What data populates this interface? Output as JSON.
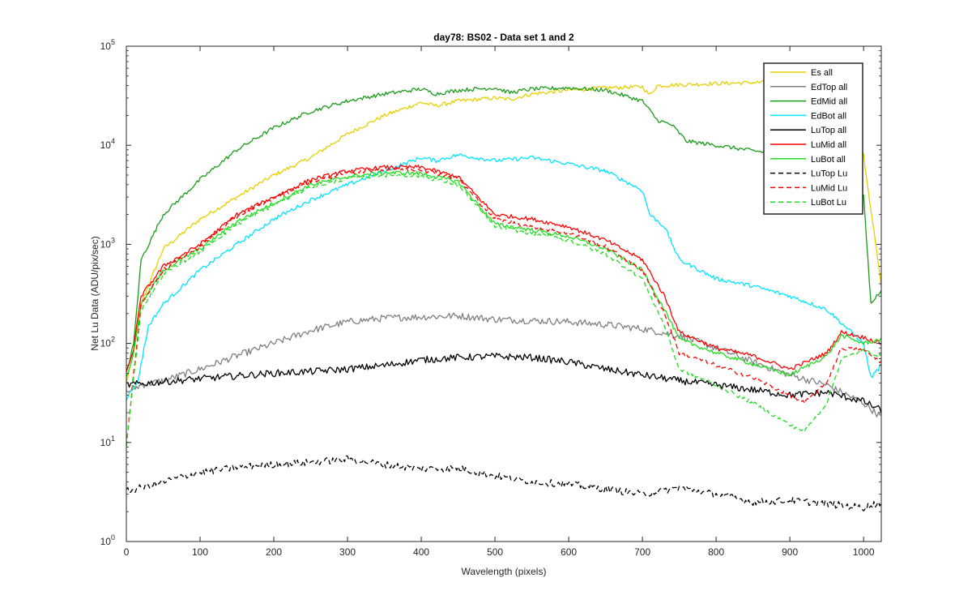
{
  "chart_data": {
    "type": "line",
    "title": "day78: BS02 - Data set 1 and 2",
    "xlabel": "Wavelength (pixels)",
    "ylabel": "Net Lu Data (ADU/pix/sec)",
    "xlim": [
      0,
      1024
    ],
    "ylim": [
      1,
      100000
    ],
    "yscale": "log",
    "legend_location": "top-right",
    "x_ticks": [
      0,
      100,
      200,
      300,
      400,
      500,
      600,
      700,
      800,
      900,
      1000
    ],
    "x_tick_labels": [
      "0",
      "100",
      "200",
      "300",
      "400",
      "500",
      "600",
      "700",
      "800",
      "900",
      "1000"
    ],
    "y_ticks": [
      1,
      10,
      100,
      1000,
      10000,
      100000
    ],
    "y_tick_labels": [
      {
        "base": "10",
        "exp": "0"
      },
      {
        "base": "10",
        "exp": "1"
      },
      {
        "base": "10",
        "exp": "2"
      },
      {
        "base": "10",
        "exp": "3"
      },
      {
        "base": "10",
        "exp": "4"
      },
      {
        "base": "10",
        "exp": "5"
      }
    ],
    "series": [
      {
        "name": "Es  all",
        "color": "#e6d000",
        "dash": "solid",
        "x": [
          0,
          10,
          20,
          50,
          100,
          150,
          200,
          250,
          300,
          350,
          400,
          420,
          450,
          500,
          520,
          550,
          600,
          650,
          700,
          710,
          720,
          800,
          900,
          980,
          1000,
          1024
        ],
        "y": [
          40,
          80,
          250,
          900,
          1800,
          3000,
          5000,
          7500,
          13000,
          20000,
          27000,
          25000,
          28000,
          30000,
          29000,
          33000,
          36000,
          38000,
          39000,
          32000,
          40000,
          42000,
          44000,
          40000,
          8000,
          380
        ]
      },
      {
        "name": "EdTop  all",
        "color": "#808080",
        "dash": "solid",
        "x": [
          0,
          20,
          50,
          100,
          150,
          200,
          250,
          300,
          350,
          400,
          450,
          500,
          550,
          600,
          650,
          700,
          750,
          800,
          850,
          900,
          950,
          1000,
          1024
        ],
        "y": [
          32,
          38,
          42,
          55,
          75,
          100,
          135,
          165,
          180,
          185,
          190,
          175,
          170,
          165,
          155,
          140,
          120,
          90,
          65,
          48,
          38,
          25,
          18
        ]
      },
      {
        "name": "EdMid  all",
        "color": "#1a9c1a",
        "dash": "solid",
        "x": [
          0,
          10,
          20,
          50,
          100,
          150,
          200,
          250,
          300,
          350,
          400,
          420,
          450,
          500,
          520,
          550,
          600,
          650,
          700,
          720,
          740,
          760,
          800,
          850,
          900,
          950,
          1000,
          1010,
          1024
        ],
        "y": [
          50,
          100,
          700,
          2000,
          4500,
          9000,
          15000,
          22000,
          28000,
          33000,
          37000,
          33000,
          36000,
          38000,
          34000,
          37000,
          38000,
          36000,
          28000,
          18000,
          16000,
          11000,
          10000,
          8800,
          8000,
          7500,
          3000,
          250,
          350
        ]
      },
      {
        "name": "EdBot  all",
        "color": "#00e5ff",
        "dash": "solid",
        "x": [
          0,
          15,
          30,
          50,
          100,
          150,
          200,
          250,
          300,
          350,
          400,
          420,
          450,
          500,
          550,
          600,
          650,
          700,
          710,
          730,
          750,
          800,
          850,
          900,
          950,
          1000,
          1010,
          1024
        ],
        "y": [
          28,
          40,
          150,
          250,
          550,
          1000,
          1800,
          2800,
          4000,
          5500,
          7500,
          7000,
          8000,
          7000,
          7500,
          6500,
          5500,
          3500,
          2000,
          1500,
          700,
          450,
          380,
          300,
          220,
          100,
          45,
          60
        ]
      },
      {
        "name": "LuTop  all",
        "color": "#000000",
        "dash": "solid",
        "x": [
          0,
          50,
          100,
          150,
          200,
          250,
          300,
          350,
          400,
          450,
          500,
          550,
          600,
          650,
          700,
          750,
          800,
          850,
          900,
          950,
          1000,
          1024
        ],
        "y": [
          38,
          41,
          44,
          47,
          50,
          52,
          55,
          60,
          68,
          72,
          74,
          72,
          65,
          55,
          48,
          42,
          38,
          34,
          30,
          32,
          26,
          21
        ]
      },
      {
        "name": "LuMid  all",
        "color": "#ff0000",
        "dash": "solid",
        "x": [
          0,
          10,
          20,
          50,
          100,
          150,
          200,
          250,
          300,
          350,
          400,
          450,
          500,
          550,
          600,
          650,
          700,
          730,
          750,
          800,
          850,
          900,
          950,
          970,
          1000,
          1024
        ],
        "y": [
          50,
          90,
          300,
          600,
          1000,
          2000,
          3000,
          4500,
          5500,
          6000,
          6000,
          4800,
          2000,
          1800,
          1500,
          1100,
          700,
          300,
          130,
          90,
          75,
          55,
          80,
          130,
          115,
          100
        ]
      },
      {
        "name": "LuBot  all",
        "color": "#22dd22",
        "dash": "solid",
        "x": [
          0,
          10,
          20,
          50,
          100,
          150,
          200,
          250,
          300,
          350,
          400,
          450,
          500,
          550,
          600,
          650,
          700,
          730,
          750,
          800,
          850,
          900,
          950,
          970,
          1000,
          1024
        ],
        "y": [
          45,
          80,
          250,
          550,
          900,
          1700,
          2600,
          4000,
          4800,
          5300,
          5200,
          4300,
          1600,
          1400,
          1200,
          900,
          550,
          220,
          110,
          80,
          62,
          48,
          75,
          120,
          100,
          110
        ]
      },
      {
        "name": "LuTop  Lu",
        "color": "#000000",
        "dash": "dashed",
        "x": [
          0,
          50,
          100,
          150,
          200,
          250,
          300,
          350,
          400,
          450,
          500,
          550,
          600,
          650,
          700,
          750,
          800,
          850,
          900,
          950,
          1000,
          1024
        ],
        "y": [
          3.2,
          4.0,
          5.0,
          5.6,
          6.0,
          6.3,
          6.8,
          6.0,
          5.4,
          5.5,
          4.6,
          4.0,
          3.8,
          3.4,
          3.0,
          3.5,
          3.0,
          2.5,
          2.6,
          2.4,
          2.2,
          2.5
        ]
      },
      {
        "name": "LuMid  Lu",
        "color": "#ff0000",
        "dash": "dashed",
        "x": [
          0,
          10,
          20,
          50,
          100,
          150,
          200,
          250,
          300,
          350,
          400,
          450,
          500,
          550,
          600,
          650,
          700,
          730,
          750,
          800,
          850,
          900,
          920,
          950,
          970,
          1000,
          1024
        ],
        "y": [
          9,
          50,
          250,
          550,
          950,
          1900,
          2900,
          4300,
          5300,
          5700,
          5700,
          4600,
          1800,
          1500,
          1300,
          950,
          550,
          200,
          80,
          60,
          45,
          30,
          25,
          40,
          90,
          85,
          65
        ]
      },
      {
        "name": "LuBot  Lu",
        "color": "#22dd22",
        "dash": "dashed",
        "x": [
          0,
          10,
          20,
          50,
          100,
          150,
          200,
          250,
          300,
          350,
          400,
          450,
          500,
          550,
          600,
          650,
          700,
          730,
          750,
          800,
          850,
          900,
          920,
          950,
          970,
          1000,
          1024
        ],
        "y": [
          9,
          45,
          220,
          500,
          850,
          1600,
          2500,
          3800,
          4600,
          5000,
          4900,
          4000,
          1500,
          1300,
          1100,
          800,
          450,
          150,
          55,
          38,
          25,
          15,
          13,
          25,
          70,
          85,
          75
        ]
      }
    ]
  }
}
